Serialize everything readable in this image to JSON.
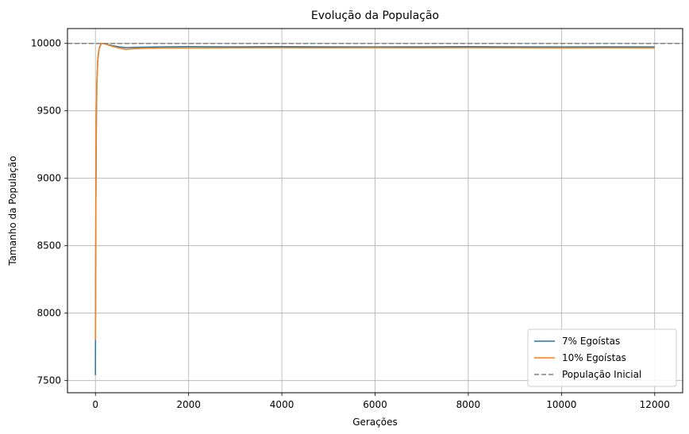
{
  "chart_data": {
    "type": "line",
    "title": "Evolução da População",
    "xlabel": "Gerações",
    "ylabel": "Tamanho da População",
    "xlim": [
      -600,
      12600
    ],
    "ylim": [
      7410,
      10110
    ],
    "xticks": [
      0,
      2000,
      4000,
      6000,
      8000,
      10000,
      12000
    ],
    "yticks": [
      7500,
      8000,
      8500,
      9000,
      9500,
      10000
    ],
    "grid": true,
    "legend_position": "lower-right",
    "series": [
      {
        "name": "7% Egoístas",
        "color": "#1f77b4",
        "x": [
          0,
          10,
          20,
          30,
          50,
          80,
          120,
          160,
          200,
          260,
          350,
          500,
          650,
          800,
          1000,
          1500,
          2000,
          3000,
          4000,
          5000,
          6000,
          7000,
          8000,
          9000,
          10000,
          11000,
          12000
        ],
        "y": [
          7540,
          8800,
          9400,
          9700,
          9880,
          9960,
          9995,
          10000,
          9998,
          9992,
          9985,
          9975,
          9968,
          9970,
          9972,
          9975,
          9976,
          9975,
          9976,
          9975,
          9974,
          9975,
          9976,
          9975,
          9974,
          9975,
          9974
        ]
      },
      {
        "name": "10% Egoístas",
        "color": "#ff7f0e",
        "x": [
          0,
          10,
          20,
          30,
          50,
          80,
          120,
          160,
          200,
          260,
          350,
          500,
          650,
          800,
          1000,
          1500,
          2000,
          3000,
          4000,
          5000,
          6000,
          7000,
          8000,
          9000,
          10000,
          11000,
          12000
        ],
        "y": [
          7800,
          8900,
          9450,
          9720,
          9890,
          9965,
          9996,
          10000,
          9997,
          9990,
          9980,
          9966,
          9955,
          9960,
          9963,
          9966,
          9966,
          9967,
          9968,
          9967,
          9968,
          9967,
          9968,
          9967,
          9966,
          9967,
          9966
        ]
      },
      {
        "name": "População Inicial",
        "color": "#808080",
        "dashed": true,
        "hline": 10000
      }
    ]
  }
}
